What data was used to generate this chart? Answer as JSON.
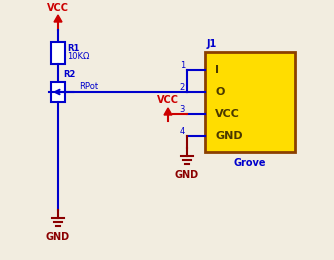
{
  "bg_color": "#f2ede0",
  "blue": "#0000cc",
  "red": "#cc0000",
  "dark_red": "#8b0000",
  "yellow": "#ffdd00",
  "olive_text": "#4a3800",
  "vcc_label": "VCC",
  "gnd_label": "GND",
  "r1_label": "R1",
  "r1_value": "10KΩ",
  "r2_label": "R2",
  "r2_value": "RPot",
  "j1_label": "J1",
  "grove_label": "Grove",
  "connector_pins": [
    "I",
    "O",
    "VCC",
    "GND"
  ],
  "pin_numbers": [
    "1",
    "2",
    "3",
    "4"
  ]
}
